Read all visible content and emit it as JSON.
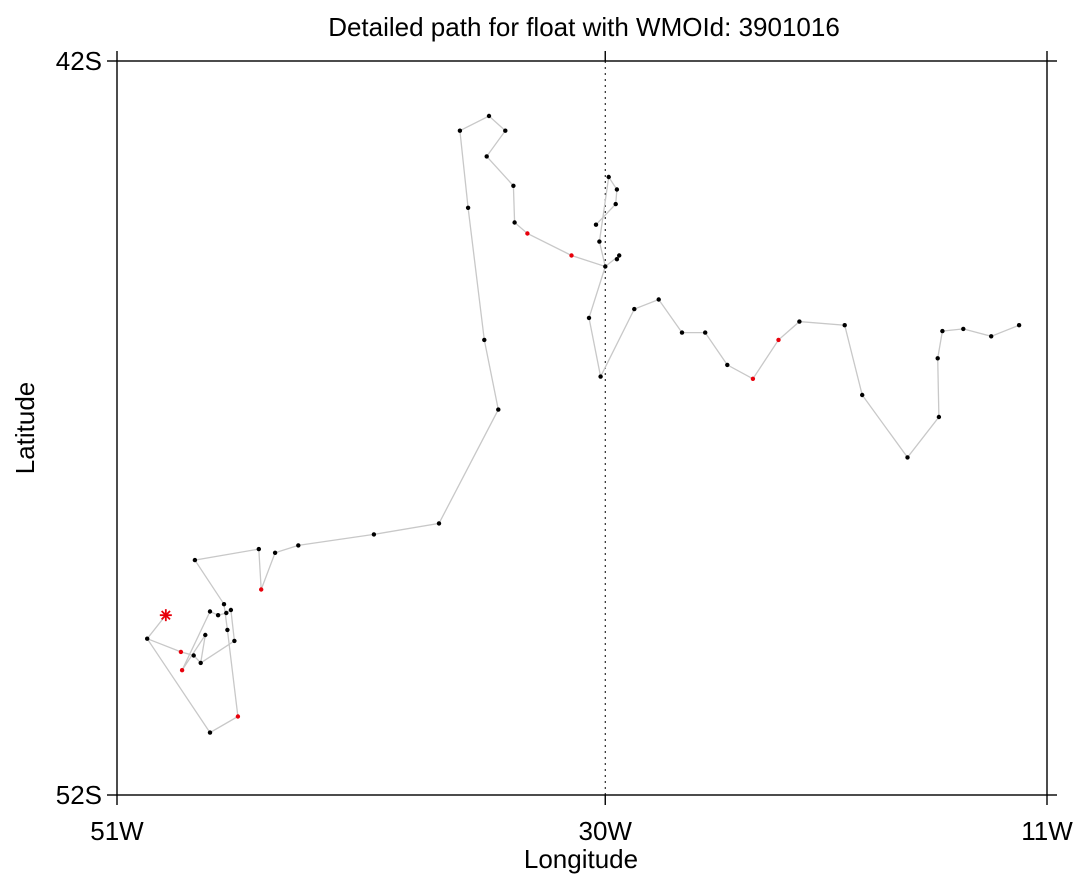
{
  "chart_data": {
    "type": "scatter",
    "title": "Detailed path for float with WMOId: 3901016",
    "xlabel": "Longitude",
    "ylabel": "Latitude",
    "xlim": [
      -51,
      -11
    ],
    "ylim": [
      -52,
      -42
    ],
    "x_ticks": [
      {
        "value": -51,
        "label": "51W"
      },
      {
        "value": -30,
        "label": "30W"
      },
      {
        "value": -11,
        "label": "11W"
      }
    ],
    "y_ticks": [
      {
        "value": -42,
        "label": "42S"
      },
      {
        "value": -52,
        "label": "52S"
      }
    ],
    "reference_line": {
      "x": -30,
      "style": "dotted"
    },
    "grid": false,
    "legend": "none",
    "colors": {
      "path": "#c8c8c8",
      "point": "#000000",
      "highlight": "#e8000b",
      "frame": "#000000"
    },
    "start_marker": {
      "x": -48.9,
      "y": -49.55,
      "marker": "asterisk",
      "color": "#e8000b"
    },
    "path": [
      {
        "x": -48.9,
        "y": -49.55,
        "c": "red"
      },
      {
        "x": -49.7,
        "y": -49.87
      },
      {
        "x": -47.0,
        "y": -51.15
      },
      {
        "x": -45.8,
        "y": -50.93,
        "c": "red"
      },
      {
        "x": -46.25,
        "y": -49.75
      },
      {
        "x": -46.4,
        "y": -49.4
      },
      {
        "x": -47.65,
        "y": -48.8
      },
      {
        "x": -44.9,
        "y": -48.65
      },
      {
        "x": -44.8,
        "y": -49.2,
        "c": "red"
      },
      {
        "x": -44.2,
        "y": -48.7
      },
      {
        "x": -43.2,
        "y": -48.6
      },
      {
        "x": -39.95,
        "y": -48.45
      },
      {
        "x": -37.15,
        "y": -48.3
      },
      {
        "x": -34.6,
        "y": -46.75
      },
      {
        "x": -35.2,
        "y": -45.8
      },
      {
        "x": -35.9,
        "y": -44.0
      },
      {
        "x": -36.25,
        "y": -42.95
      },
      {
        "x": -35.0,
        "y": -42.75
      },
      {
        "x": -34.3,
        "y": -42.95
      },
      {
        "x": -35.1,
        "y": -43.3
      },
      {
        "x": -33.95,
        "y": -43.7
      },
      {
        "x": -33.9,
        "y": -44.2
      },
      {
        "x": -33.35,
        "y": -44.35,
        "c": "red"
      },
      {
        "x": -31.45,
        "y": -44.65,
        "c": "red"
      },
      {
        "x": -30.0,
        "y": -44.8
      },
      {
        "x": -30.7,
        "y": -45.5
      },
      {
        "x": -30.2,
        "y": -46.3
      },
      {
        "x": -28.75,
        "y": -45.38
      },
      {
        "x": -27.7,
        "y": -45.25
      },
      {
        "x": -26.7,
        "y": -45.7
      },
      {
        "x": -25.7,
        "y": -45.7
      },
      {
        "x": -24.75,
        "y": -46.14
      },
      {
        "x": -23.65,
        "y": -46.33,
        "c": "red"
      },
      {
        "x": -22.55,
        "y": -45.8,
        "c": "red"
      },
      {
        "x": -21.65,
        "y": -45.55
      },
      {
        "x": -19.7,
        "y": -45.6
      },
      {
        "x": -18.95,
        "y": -46.55
      },
      {
        "x": -17.0,
        "y": -47.4
      },
      {
        "x": -15.65,
        "y": -46.85
      },
      {
        "x": -15.7,
        "y": -46.05
      },
      {
        "x": -15.5,
        "y": -45.68
      },
      {
        "x": -14.6,
        "y": -45.65
      },
      {
        "x": -13.4,
        "y": -45.75
      },
      {
        "x": -12.2,
        "y": -45.6
      }
    ],
    "extra_points": [
      {
        "x": -30.4,
        "y": -44.23
      },
      {
        "x": -30.25,
        "y": -44.46
      },
      {
        "x": -29.5,
        "y": -44.7
      },
      {
        "x": -29.4,
        "y": -44.65
      },
      {
        "x": -29.55,
        "y": -43.95
      },
      {
        "x": -29.5,
        "y": -43.75
      },
      {
        "x": -29.85,
        "y": -43.58
      },
      {
        "x": -48.25,
        "y": -50.05,
        "c": "red"
      },
      {
        "x": -47.7,
        "y": -50.1
      },
      {
        "x": -47.4,
        "y": -50.2
      },
      {
        "x": -47.2,
        "y": -49.82
      },
      {
        "x": -48.2,
        "y": -50.3,
        "c": "red"
      },
      {
        "x": -47.0,
        "y": -49.5
      },
      {
        "x": -46.65,
        "y": -49.55
      },
      {
        "x": -46.3,
        "y": -49.52
      },
      {
        "x": -46.1,
        "y": -49.48
      },
      {
        "x": -45.95,
        "y": -49.9
      }
    ]
  }
}
